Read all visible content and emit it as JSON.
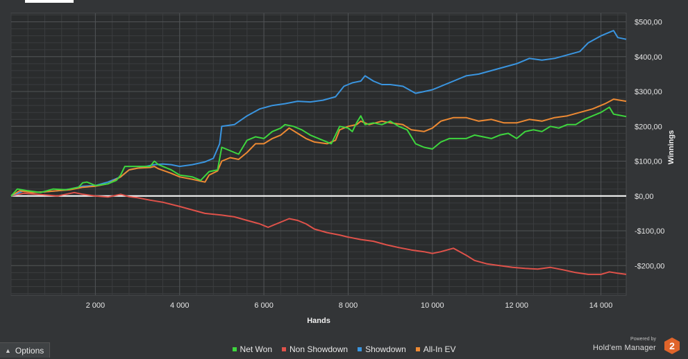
{
  "chart_data": {
    "type": "line",
    "xlabel": "Hands",
    "ylabel": "Winnings",
    "xlim": [
      0,
      14600
    ],
    "ylim": [
      -285,
      525
    ],
    "x_ticks": [
      2000,
      4000,
      6000,
      8000,
      10000,
      12000,
      14000
    ],
    "x_tick_labels": [
      "2 000",
      "4 000",
      "6 000",
      "8 000",
      "10 000",
      "12 000",
      "14 000"
    ],
    "y_ticks": [
      -200,
      -100,
      0,
      100,
      200,
      300,
      400,
      500
    ],
    "y_tick_labels": [
      "-$200,00",
      "-$100,00",
      "$0,00",
      "$100,00",
      "$200,00",
      "$300,00",
      "$400,00",
      "$500,00"
    ],
    "grid": true,
    "legend_position": "bottom",
    "series": [
      {
        "name": "Net Won",
        "color": "#3ed63e",
        "points": [
          [
            0,
            0
          ],
          [
            150,
            20
          ],
          [
            400,
            15
          ],
          [
            700,
            10
          ],
          [
            1000,
            20
          ],
          [
            1300,
            18
          ],
          [
            1600,
            25
          ],
          [
            1700,
            38
          ],
          [
            1800,
            40
          ],
          [
            2000,
            30
          ],
          [
            2300,
            35
          ],
          [
            2500,
            45
          ],
          [
            2600,
            60
          ],
          [
            2700,
            85
          ],
          [
            3000,
            85
          ],
          [
            3300,
            85
          ],
          [
            3400,
            100
          ],
          [
            3500,
            90
          ],
          [
            3800,
            75
          ],
          [
            4000,
            60
          ],
          [
            4300,
            55
          ],
          [
            4500,
            45
          ],
          [
            4700,
            70
          ],
          [
            4900,
            75
          ],
          [
            5000,
            140
          ],
          [
            5200,
            130
          ],
          [
            5400,
            120
          ],
          [
            5600,
            160
          ],
          [
            5800,
            170
          ],
          [
            6000,
            165
          ],
          [
            6200,
            185
          ],
          [
            6400,
            195
          ],
          [
            6500,
            205
          ],
          [
            6700,
            200
          ],
          [
            6900,
            190
          ],
          [
            7100,
            175
          ],
          [
            7300,
            165
          ],
          [
            7600,
            150
          ],
          [
            7700,
            175
          ],
          [
            7800,
            200
          ],
          [
            8000,
            195
          ],
          [
            8100,
            185
          ],
          [
            8200,
            210
          ],
          [
            8300,
            230
          ],
          [
            8400,
            205
          ],
          [
            8600,
            210
          ],
          [
            8800,
            205
          ],
          [
            9000,
            215
          ],
          [
            9200,
            200
          ],
          [
            9400,
            190
          ],
          [
            9600,
            150
          ],
          [
            9800,
            140
          ],
          [
            10000,
            135
          ],
          [
            10200,
            155
          ],
          [
            10400,
            165
          ],
          [
            10600,
            165
          ],
          [
            10800,
            165
          ],
          [
            11000,
            175
          ],
          [
            11200,
            170
          ],
          [
            11400,
            165
          ],
          [
            11600,
            175
          ],
          [
            11800,
            180
          ],
          [
            12000,
            165
          ],
          [
            12200,
            185
          ],
          [
            12400,
            190
          ],
          [
            12600,
            185
          ],
          [
            12800,
            200
          ],
          [
            13000,
            195
          ],
          [
            13200,
            205
          ],
          [
            13400,
            205
          ],
          [
            13600,
            220
          ],
          [
            13800,
            230
          ],
          [
            14000,
            240
          ],
          [
            14200,
            255
          ],
          [
            14300,
            235
          ],
          [
            14600,
            228
          ]
        ]
      },
      {
        "name": "Non Showdown",
        "color": "#e0524a",
        "points": [
          [
            0,
            0
          ],
          [
            300,
            8
          ],
          [
            600,
            5
          ],
          [
            900,
            2
          ],
          [
            1100,
            0
          ],
          [
            1500,
            10
          ],
          [
            1700,
            5
          ],
          [
            2000,
            0
          ],
          [
            2300,
            -3
          ],
          [
            2600,
            5
          ],
          [
            2800,
            -2
          ],
          [
            3000,
            -5
          ],
          [
            3300,
            -12
          ],
          [
            3600,
            -18
          ],
          [
            4000,
            -30
          ],
          [
            4300,
            -40
          ],
          [
            4600,
            -50
          ],
          [
            5000,
            -55
          ],
          [
            5300,
            -60
          ],
          [
            5600,
            -70
          ],
          [
            5900,
            -80
          ],
          [
            6100,
            -90
          ],
          [
            6200,
            -85
          ],
          [
            6400,
            -75
          ],
          [
            6600,
            -65
          ],
          [
            6800,
            -70
          ],
          [
            7000,
            -80
          ],
          [
            7200,
            -95
          ],
          [
            7500,
            -105
          ],
          [
            7800,
            -112
          ],
          [
            8000,
            -118
          ],
          [
            8300,
            -125
          ],
          [
            8600,
            -130
          ],
          [
            8900,
            -140
          ],
          [
            9200,
            -148
          ],
          [
            9500,
            -155
          ],
          [
            9800,
            -160
          ],
          [
            10000,
            -165
          ],
          [
            10200,
            -160
          ],
          [
            10500,
            -150
          ],
          [
            10800,
            -170
          ],
          [
            11000,
            -185
          ],
          [
            11300,
            -195
          ],
          [
            11600,
            -200
          ],
          [
            11900,
            -205
          ],
          [
            12200,
            -208
          ],
          [
            12500,
            -210
          ],
          [
            12800,
            -205
          ],
          [
            13100,
            -212
          ],
          [
            13400,
            -220
          ],
          [
            13700,
            -225
          ],
          [
            14000,
            -225
          ],
          [
            14200,
            -218
          ],
          [
            14400,
            -222
          ],
          [
            14600,
            -225
          ]
        ]
      },
      {
        "name": "Showdown",
        "color": "#3a95e0",
        "points": [
          [
            0,
            0
          ],
          [
            300,
            15
          ],
          [
            500,
            10
          ],
          [
            800,
            12
          ],
          [
            1100,
            15
          ],
          [
            1400,
            20
          ],
          [
            1700,
            28
          ],
          [
            2000,
            30
          ],
          [
            2300,
            40
          ],
          [
            2600,
            55
          ],
          [
            2800,
            75
          ],
          [
            3000,
            80
          ],
          [
            3200,
            85
          ],
          [
            3400,
            90
          ],
          [
            3600,
            92
          ],
          [
            3800,
            90
          ],
          [
            4000,
            85
          ],
          [
            4300,
            90
          ],
          [
            4600,
            98
          ],
          [
            4800,
            108
          ],
          [
            4950,
            150
          ],
          [
            5000,
            200
          ],
          [
            5300,
            205
          ],
          [
            5600,
            230
          ],
          [
            5900,
            250
          ],
          [
            6200,
            260
          ],
          [
            6500,
            265
          ],
          [
            6800,
            272
          ],
          [
            7100,
            270
          ],
          [
            7400,
            275
          ],
          [
            7700,
            285
          ],
          [
            7900,
            315
          ],
          [
            8100,
            325
          ],
          [
            8300,
            330
          ],
          [
            8400,
            345
          ],
          [
            8600,
            330
          ],
          [
            8800,
            320
          ],
          [
            9000,
            320
          ],
          [
            9300,
            315
          ],
          [
            9600,
            295
          ],
          [
            9800,
            300
          ],
          [
            10000,
            305
          ],
          [
            10200,
            315
          ],
          [
            10500,
            330
          ],
          [
            10800,
            345
          ],
          [
            11100,
            350
          ],
          [
            11400,
            360
          ],
          [
            11700,
            370
          ],
          [
            12000,
            380
          ],
          [
            12300,
            395
          ],
          [
            12600,
            390
          ],
          [
            12900,
            395
          ],
          [
            13200,
            405
          ],
          [
            13500,
            415
          ],
          [
            13700,
            440
          ],
          [
            14000,
            460
          ],
          [
            14300,
            475
          ],
          [
            14400,
            455
          ],
          [
            14600,
            450
          ]
        ]
      },
      {
        "name": "All-In EV",
        "color": "#ee8a33",
        "points": [
          [
            0,
            0
          ],
          [
            200,
            15
          ],
          [
            500,
            10
          ],
          [
            800,
            12
          ],
          [
            1100,
            15
          ],
          [
            1400,
            18
          ],
          [
            1700,
            25
          ],
          [
            2000,
            28
          ],
          [
            2300,
            35
          ],
          [
            2600,
            55
          ],
          [
            2800,
            75
          ],
          [
            3000,
            80
          ],
          [
            3300,
            82
          ],
          [
            3400,
            85
          ],
          [
            3500,
            78
          ],
          [
            3800,
            65
          ],
          [
            4000,
            55
          ],
          [
            4300,
            48
          ],
          [
            4600,
            40
          ],
          [
            4700,
            60
          ],
          [
            4900,
            72
          ],
          [
            5000,
            100
          ],
          [
            5200,
            110
          ],
          [
            5400,
            105
          ],
          [
            5600,
            125
          ],
          [
            5800,
            150
          ],
          [
            6000,
            150
          ],
          [
            6200,
            165
          ],
          [
            6400,
            175
          ],
          [
            6600,
            195
          ],
          [
            6800,
            180
          ],
          [
            7000,
            165
          ],
          [
            7200,
            155
          ],
          [
            7500,
            150
          ],
          [
            7700,
            160
          ],
          [
            7800,
            190
          ],
          [
            8000,
            200
          ],
          [
            8200,
            205
          ],
          [
            8300,
            215
          ],
          [
            8500,
            205
          ],
          [
            8800,
            215
          ],
          [
            9000,
            210
          ],
          [
            9300,
            205
          ],
          [
            9500,
            190
          ],
          [
            9800,
            185
          ],
          [
            10000,
            195
          ],
          [
            10200,
            215
          ],
          [
            10500,
            225
          ],
          [
            10800,
            225
          ],
          [
            11100,
            215
          ],
          [
            11400,
            220
          ],
          [
            11700,
            210
          ],
          [
            12000,
            210
          ],
          [
            12300,
            220
          ],
          [
            12600,
            215
          ],
          [
            12900,
            225
          ],
          [
            13200,
            230
          ],
          [
            13500,
            240
          ],
          [
            13800,
            250
          ],
          [
            14100,
            265
          ],
          [
            14300,
            278
          ],
          [
            14600,
            272
          ]
        ]
      }
    ]
  },
  "legend": [
    {
      "label": "Net Won",
      "color": "#3ed63e"
    },
    {
      "label": "Non Showdown",
      "color": "#e0524a"
    },
    {
      "label": "Showdown",
      "color": "#3a95e0"
    },
    {
      "label": "All-In EV",
      "color": "#ee8a33"
    }
  ],
  "options_button": {
    "label": "Options",
    "icon": "chevron-up-icon"
  },
  "brand": {
    "powered_by": "Powered by",
    "name": "Hold'em Manager",
    "badge": "2"
  }
}
